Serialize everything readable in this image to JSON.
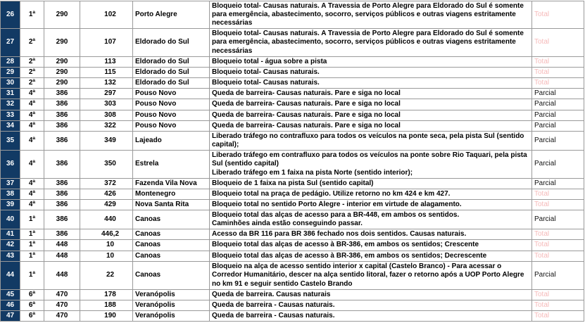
{
  "colors": {
    "row_number_bg": "#123a64",
    "total_status": "#f6b9b9",
    "parcial_status": "#111111",
    "border": "#9a9a9a"
  },
  "rows": [
    {
      "n": "26",
      "regional": "1ª",
      "br": "290",
      "km": "102",
      "city": "Porto Alegre",
      "desc": "Bloqueio total- Causas naturais. A Travessia de Porto Alegre para Eldorado do Sul é somente para emergência, abastecimento, socorro, serviços públicos e outras viagens estritamente necessárias",
      "status": "Total"
    },
    {
      "n": "27",
      "regional": "2ª",
      "br": "290",
      "km": "107",
      "city": "Eldorado do Sul",
      "desc": "Bloqueio total- Causas naturais. A Travessia de Porto Alegre para Eldorado do Sul é somente para emergência, abastecimento, socorro, serviços públicos e outras viagens estritamente necessárias",
      "status": "Total"
    },
    {
      "n": "28",
      "regional": "2ª",
      "br": "290",
      "km": "113",
      "city": "Eldorado do Sul",
      "desc": "Bloqueio total - água sobre a pista",
      "status": "Total"
    },
    {
      "n": "29",
      "regional": "2ª",
      "br": "290",
      "km": "115",
      "city": "Eldorado do Sul",
      "desc": "Bloqueio total- Causas naturais.",
      "status": "Total"
    },
    {
      "n": "30",
      "regional": "2ª",
      "br": "290",
      "km": "132",
      "city": "Eldorado do Sul",
      "desc": "Bloqueio total- Causas naturais.",
      "status": "Total"
    },
    {
      "n": "31",
      "regional": "4ª",
      "br": "386",
      "km": "297",
      "city": "Pouso Novo",
      "desc": "Queda de barreira- Causas naturais.  Pare e siga no local",
      "status": "Parcial"
    },
    {
      "n": "32",
      "regional": "4ª",
      "br": "386",
      "km": "303",
      "city": "Pouso Novo",
      "desc": "Queda de barreira- Causas naturais. Pare e siga no local",
      "status": "Parcial"
    },
    {
      "n": "33",
      "regional": "4ª",
      "br": "386",
      "km": "308",
      "city": "Pouso Novo",
      "desc": "Queda de barreira- Causas naturais. Pare e siga no local",
      "status": "Parcial"
    },
    {
      "n": "34",
      "regional": "4ª",
      "br": "386",
      "km": "322",
      "city": "Pouso Novo",
      "desc": "Queda de barreira- Causas naturais. Pare e siga no local",
      "status": "Parcial"
    },
    {
      "n": "35",
      "regional": "4ª",
      "br": "386",
      "km": "349",
      "city": "Lajeado",
      "desc": "Liberado tráfego no contrafluxo para todos os veículos na ponte seca, pela pista Sul (sentido capital);",
      "status": "Parcial"
    },
    {
      "n": "36",
      "regional": "4ª",
      "br": "386",
      "km": "350",
      "city": "Estrela",
      "desc": "Liberado tráfego em contrafluxo para todos os veículos na ponte sobre Rio Taquari, pela pista Sul (sentido capital)\nLiberado tráfego em 1 faixa na pista Norte (sentido interior);",
      "status": "Parcial"
    },
    {
      "n": "37",
      "regional": "4ª",
      "br": "386",
      "km": "372",
      "city": "Fazenda Vila Nova",
      "desc": "Bloqueio de 1 faixa na pista Sul (sentido capital)",
      "status": "Parcial"
    },
    {
      "n": "38",
      "regional": "4ª",
      "br": "386",
      "km": "426",
      "city": "Montenegro",
      "desc": "Bloqueio total na praça de pedágio. Utilize retorno no km 424 e km 427.",
      "status": "Total"
    },
    {
      "n": "39",
      "regional": "4ª",
      "br": "386",
      "km": "429",
      "city": "Nova Santa Rita",
      "desc": "Bloqueio total no sentido Porto Alegre - interior em virtude de alagamento.",
      "status": "Total"
    },
    {
      "n": "40",
      "regional": "1ª",
      "br": "386",
      "km": "440",
      "city": "Canoas",
      "desc": "Bloqueio total das alças de acesso para a BR-448, em ambos os sentidos.\nCaminhões ainda estão conseguindo passar.",
      "status": "Parcial"
    },
    {
      "n": "41",
      "regional": "1ª",
      "br": "386",
      "km": "446,2",
      "city": "Canoas",
      "desc": "Acesso da BR 116 para BR 386 fechado nos dois sentidos. Causas naturais.",
      "status": "Total"
    },
    {
      "n": "42",
      "regional": "1ª",
      "br": "448",
      "km": "10",
      "city": "Canoas",
      "desc": "Bloqueio total das alças de acesso à BR-386, em ambos os sentidos; Crescente",
      "status": "Total"
    },
    {
      "n": "43",
      "regional": "1ª",
      "br": "448",
      "km": "10",
      "city": "Canoas",
      "desc": "Bloqueio total das alças de acesso à BR-386, em ambos os sentidos; Decrescente",
      "status": "Total"
    },
    {
      "n": "44",
      "regional": "1ª",
      "br": "448",
      "km": "22",
      "city": "Canoas",
      "desc": "Bloqueio na alça de acesso sentido interior x capital (Castelo Branco) - Para acessar o Corredor Humanitário, descer na alça sentido litoral, fazer o retorno após a UOP Porto Alegre no km 91 e seguir sentido Castelo Brando",
      "status": "Parcial"
    },
    {
      "n": "45",
      "regional": "6ª",
      "br": "470",
      "km": "178",
      "city": "Veranópolis",
      "desc": "Queda de barreira. Causas naturais",
      "status": "Total"
    },
    {
      "n": "46",
      "regional": "6ª",
      "br": "470",
      "km": "188",
      "city": "Veranópolis",
      "desc": "Queda de barreira - Causas naturais.",
      "status": "Total"
    },
    {
      "n": "47",
      "regional": "6ª",
      "br": "470",
      "km": "190",
      "city": "Veranópolis",
      "desc": "Queda de barreira - Causas naturais.",
      "status": "Total"
    }
  ]
}
